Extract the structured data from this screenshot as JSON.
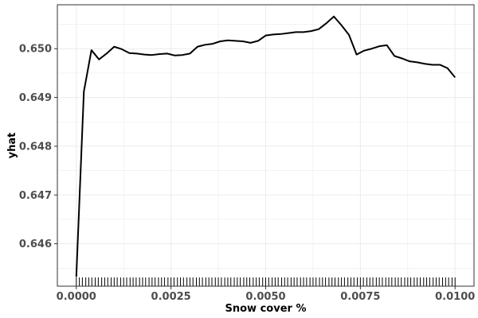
{
  "chart_data": {
    "type": "line",
    "title": "",
    "xlabel": "Snow cover %",
    "ylabel": "yhat",
    "xlim": [
      -0.0005,
      0.0105
    ],
    "ylim": [
      0.64513,
      0.6509
    ],
    "x_ticks": [
      0.0,
      0.0025,
      0.005,
      0.0075,
      0.01
    ],
    "x_tick_labels": [
      "0.0000",
      "0.0025",
      "0.0050",
      "0.0075",
      "0.0100"
    ],
    "y_ticks": [
      0.646,
      0.647,
      0.648,
      0.649,
      0.65
    ],
    "y_tick_labels": [
      "0.646",
      "0.647",
      "0.648",
      "0.649",
      "0.650"
    ],
    "grid": true,
    "line_color": "#000000",
    "series": [
      {
        "x": [
          0.0,
          0.0002,
          0.0004,
          0.0006,
          0.0008,
          0.001,
          0.0012,
          0.0014,
          0.0016,
          0.0018,
          0.002,
          0.0022,
          0.0024,
          0.0026,
          0.0028,
          0.003,
          0.0032,
          0.0034,
          0.0036,
          0.0038,
          0.004,
          0.0042,
          0.0044,
          0.0046,
          0.0048,
          0.005,
          0.0052,
          0.0054,
          0.0056,
          0.0058,
          0.006,
          0.0062,
          0.0064,
          0.0066,
          0.0068,
          0.007,
          0.0072,
          0.0074,
          0.0076,
          0.0078,
          0.008,
          0.0082,
          0.0084,
          0.0086,
          0.0088,
          0.009,
          0.0092,
          0.0094,
          0.0096,
          0.0098,
          0.01
        ],
        "values": [
          0.64532,
          0.64912,
          0.64997,
          0.64978,
          0.6499,
          0.65004,
          0.64999,
          0.64991,
          0.6499,
          0.64988,
          0.64987,
          0.64989,
          0.6499,
          0.64986,
          0.64987,
          0.6499,
          0.65004,
          0.65008,
          0.6501,
          0.65015,
          0.65017,
          0.65016,
          0.65015,
          0.65012,
          0.65016,
          0.65027,
          0.65029,
          0.6503,
          0.65032,
          0.65034,
          0.65034,
          0.65036,
          0.6504,
          0.65052,
          0.65066,
          0.65048,
          0.65028,
          0.64988,
          0.64996,
          0.65,
          0.65005,
          0.65007,
          0.64985,
          0.6498,
          0.64974,
          0.64972,
          0.64969,
          0.64967,
          0.64967,
          0.6496,
          0.64941
        ]
      }
    ],
    "rug_x": [
      0.0,
      8e-05,
      0.00016,
      0.00025,
      0.00033,
      0.00041,
      0.0005,
      0.00058,
      0.00067,
      0.00075,
      0.00083,
      0.00092,
      0.001,
      0.00108,
      0.00117,
      0.00125,
      0.00133,
      0.00142,
      0.0015,
      0.00158,
      0.00167,
      0.00175,
      0.00183,
      0.00192,
      0.002,
      0.00208,
      0.00217,
      0.00225,
      0.00233,
      0.00242,
      0.0025,
      0.00258,
      0.00267,
      0.00275,
      0.00283,
      0.00292,
      0.003,
      0.00308,
      0.00317,
      0.00325,
      0.00333,
      0.00342,
      0.0035,
      0.00358,
      0.00367,
      0.00375,
      0.00383,
      0.00392,
      0.004,
      0.00408,
      0.00417,
      0.00425,
      0.00433,
      0.00442,
      0.0045,
      0.00458,
      0.00467,
      0.00475,
      0.00483,
      0.00492,
      0.005,
      0.00508,
      0.00517,
      0.00525,
      0.00533,
      0.00542,
      0.0055,
      0.00558,
      0.00567,
      0.00575,
      0.00583,
      0.00592,
      0.006,
      0.00608,
      0.00617,
      0.00625,
      0.00633,
      0.00642,
      0.0065,
      0.00658,
      0.00667,
      0.00675,
      0.00683,
      0.00692,
      0.007,
      0.00708,
      0.00717,
      0.00725,
      0.00733,
      0.00742,
      0.0075,
      0.00758,
      0.00767,
      0.00775,
      0.00783,
      0.00792,
      0.008,
      0.00808,
      0.00817,
      0.00825,
      0.00833,
      0.00842,
      0.0085,
      0.00858,
      0.00867,
      0.00875,
      0.00883,
      0.00892,
      0.009,
      0.00908,
      0.00917,
      0.00925,
      0.00933,
      0.00942,
      0.0095,
      0.00958,
      0.00967,
      0.00975,
      0.00983,
      0.00992,
      0.01
    ]
  }
}
